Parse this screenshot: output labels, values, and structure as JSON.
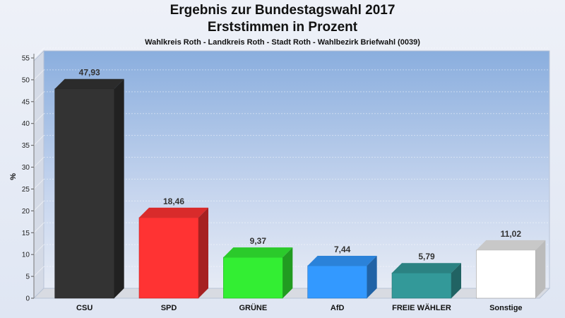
{
  "chart_data": {
    "type": "bar",
    "title": "Ergebnis zur Bundestagswahl 2017",
    "title_line2": "Erststimmen in Prozent",
    "subtitle": "Wahlkreis Roth - Landkreis Roth - Stadt Roth - Wahlbezirk Briefwahl (0039)",
    "ylabel": "%",
    "ylim": [
      0,
      55
    ],
    "yticks": [
      0,
      5,
      10,
      15,
      20,
      25,
      30,
      35,
      40,
      45,
      50,
      55
    ],
    "grid": true,
    "categories": [
      "CSU",
      "SPD",
      "GRÜNE",
      "AfD",
      "FREIE WÄHLER",
      "Sonstige"
    ],
    "values": [
      47.93,
      18.46,
      9.37,
      7.44,
      5.79,
      11.02
    ],
    "value_labels": [
      "47,93",
      "18,46",
      "9,37",
      "7,44",
      "5,79",
      "11,02"
    ],
    "colors": [
      "#333333",
      "#ff3333",
      "#33ee33",
      "#3399ff",
      "#339999",
      "#ffffff"
    ]
  }
}
